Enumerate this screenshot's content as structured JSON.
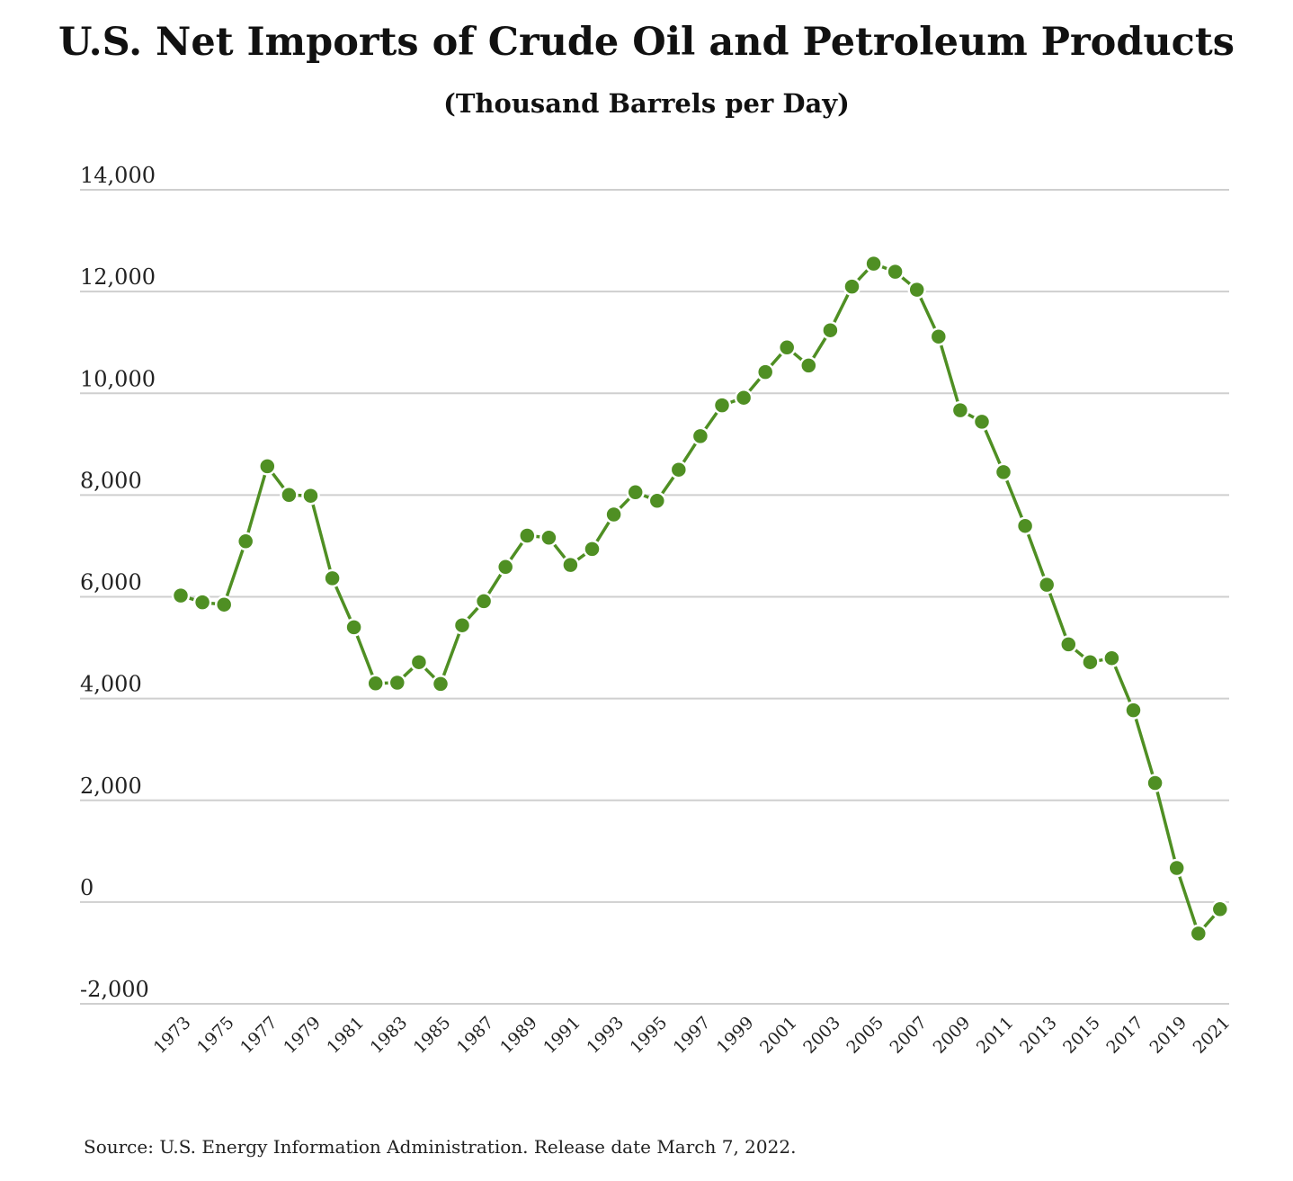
{
  "chart_data": {
    "type": "line",
    "title": "U.S. Net Imports of Crude Oil and Petroleum Products",
    "subtitle": "(Thousand Barrels per Day)",
    "source": "Source: U.S. Energy Information Administration. Release date March 7, 2022.",
    "ylim": [
      -2000,
      14000
    ],
    "yticks": [
      14000,
      12000,
      10000,
      8000,
      6000,
      4000,
      2000,
      0,
      -2000
    ],
    "ytick_labels": [
      "14,000",
      "12,000",
      "10,000",
      "8,000",
      "6,000",
      "4,000",
      "2,000",
      "0",
      "-2,000"
    ],
    "xtick_labels": [
      "1973",
      "1975",
      "1977",
      "1979",
      "1981",
      "1983",
      "1985",
      "1987",
      "1989",
      "1991",
      "1993",
      "1995",
      "1997",
      "1999",
      "2001",
      "2003",
      "2005",
      "2007",
      "2009",
      "2011",
      "2013",
      "2015",
      "2017",
      "2019",
      "2021"
    ],
    "grid": true,
    "legend": "none",
    "series": [
      {
        "color": "#4f8f23",
        "x": [
          1973,
          1974,
          1975,
          1976,
          1977,
          1978,
          1979,
          1980,
          1981,
          1982,
          1983,
          1984,
          1985,
          1986,
          1987,
          1988,
          1989,
          1990,
          1991,
          1992,
          1993,
          1994,
          1995,
          1996,
          1997,
          1998,
          1999,
          2000,
          2001,
          2002,
          2003,
          2004,
          2005,
          2006,
          2007,
          2008,
          2009,
          2010,
          2011,
          2012,
          2013,
          2014,
          2015,
          2016,
          2017,
          2018,
          2019,
          2020,
          2021
        ],
        "values": [
          6025,
          5892,
          5846,
          7090,
          8565,
          8002,
          7985,
          6365,
          5401,
          4298,
          4312,
          4715,
          4286,
          5439,
          5914,
          6587,
          7202,
          7161,
          6626,
          6938,
          7618,
          8054,
          7886,
          8498,
          9158,
          9764,
          9912,
          10419,
          10900,
          10546,
          11238,
          12097,
          12549,
          12390,
          12036,
          11114,
          9667,
          9441,
          8450,
          7393,
          6237,
          5065,
          4715,
          4795,
          3770,
          2340,
          670,
          -620,
          -140
        ]
      }
    ]
  }
}
